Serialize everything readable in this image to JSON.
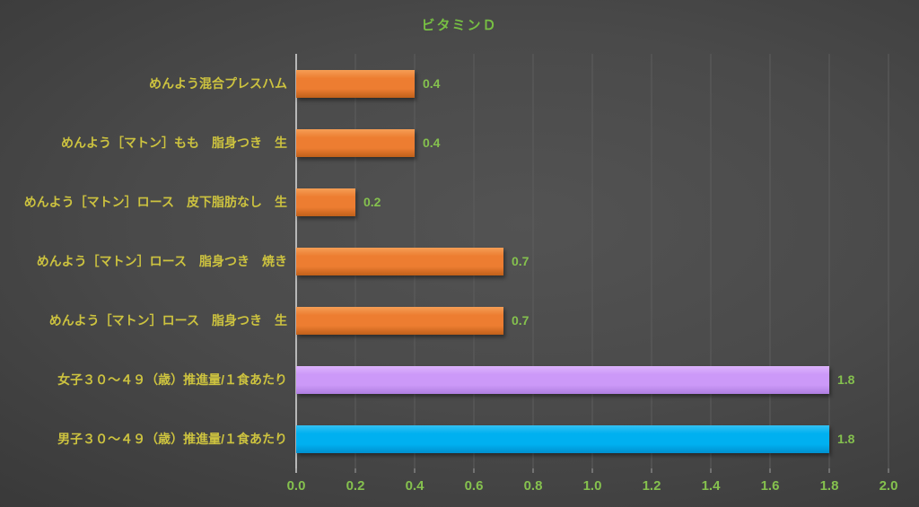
{
  "chart_data": {
    "type": "bar",
    "orientation": "horizontal",
    "title": "ビタミンＤ",
    "categories": [
      "めんよう混合プレスハム",
      "めんよう［マトン］もも　脂身つき　生",
      "めんよう［マトン］ロース　皮下脂肪なし　生",
      "めんよう［マトン］ロース　脂身つき　焼き",
      "めんよう［マトン］ロース　脂身つき　生",
      "女子３０～４９（歳）推進量/１食あたり",
      "男子３０～４９（歳）推進量/１食あたり"
    ],
    "values": [
      0.4,
      0.4,
      0.2,
      0.7,
      0.7,
      1.8,
      1.8
    ],
    "value_labels": [
      "0.4",
      "0.4",
      "0.2",
      "0.7",
      "0.7",
      "1.8",
      "1.8"
    ],
    "bar_color_keys": [
      "orange",
      "orange",
      "orange",
      "orange",
      "orange",
      "purple",
      "blue"
    ],
    "colors": {
      "orange": {
        "light": "#F59E55",
        "base": "#ED7D31",
        "dark": "#C0601A"
      },
      "purple": {
        "light": "#DDB3FC",
        "base": "#CC99F8",
        "dark": "#AE7EE0"
      },
      "blue": {
        "light": "#33C1F3",
        "base": "#00B0F0",
        "dark": "#0090CF"
      }
    },
    "xlabel": "",
    "ylabel": "",
    "xlim": [
      0,
      2
    ],
    "x_ticks": [
      "0.0",
      "0.2",
      "0.4",
      "0.6",
      "0.8",
      "1.0",
      "1.2",
      "1.4",
      "1.6",
      "1.8",
      "2.0"
    ],
    "grid": "major-vertical",
    "legend": "none",
    "style_colors": {
      "title_text": "#77BF43",
      "category_text": "#CDC33F",
      "value_text": "#85C14E",
      "tick_text": "#85C14E",
      "gridline": "#5D5D5D",
      "axis_line": "#B8B8B8",
      "tick_mark": "#9F9F9F"
    }
  }
}
